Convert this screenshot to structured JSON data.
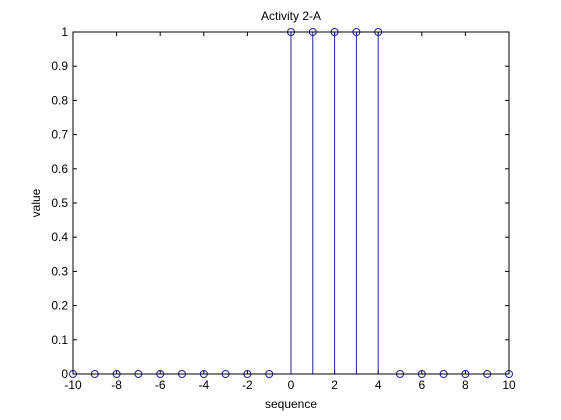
{
  "chart_data": {
    "type": "stem",
    "title": "Activity 2-A",
    "xlabel": "sequence",
    "ylabel": "value",
    "xlim": [
      -10,
      10
    ],
    "ylim": [
      0,
      1
    ],
    "xticks": [
      -10,
      -8,
      -6,
      -4,
      -2,
      0,
      2,
      4,
      6,
      8,
      10
    ],
    "yticks": [
      0,
      0.1,
      0.2,
      0.3,
      0.4,
      0.5,
      0.6,
      0.7,
      0.8,
      0.9,
      1
    ],
    "x": [
      -10,
      -9,
      -8,
      -7,
      -6,
      -5,
      -4,
      -3,
      -2,
      -1,
      0,
      1,
      2,
      3,
      4,
      5,
      6,
      7,
      8,
      9,
      10
    ],
    "y": [
      0,
      0,
      0,
      0,
      0,
      0,
      0,
      0,
      0,
      0,
      1,
      1,
      1,
      1,
      1,
      0,
      0,
      0,
      0,
      0,
      0
    ],
    "grid": false,
    "colors": {
      "stem": "#1f1f9e",
      "axes": "#000000",
      "background": "#ffffff"
    }
  }
}
